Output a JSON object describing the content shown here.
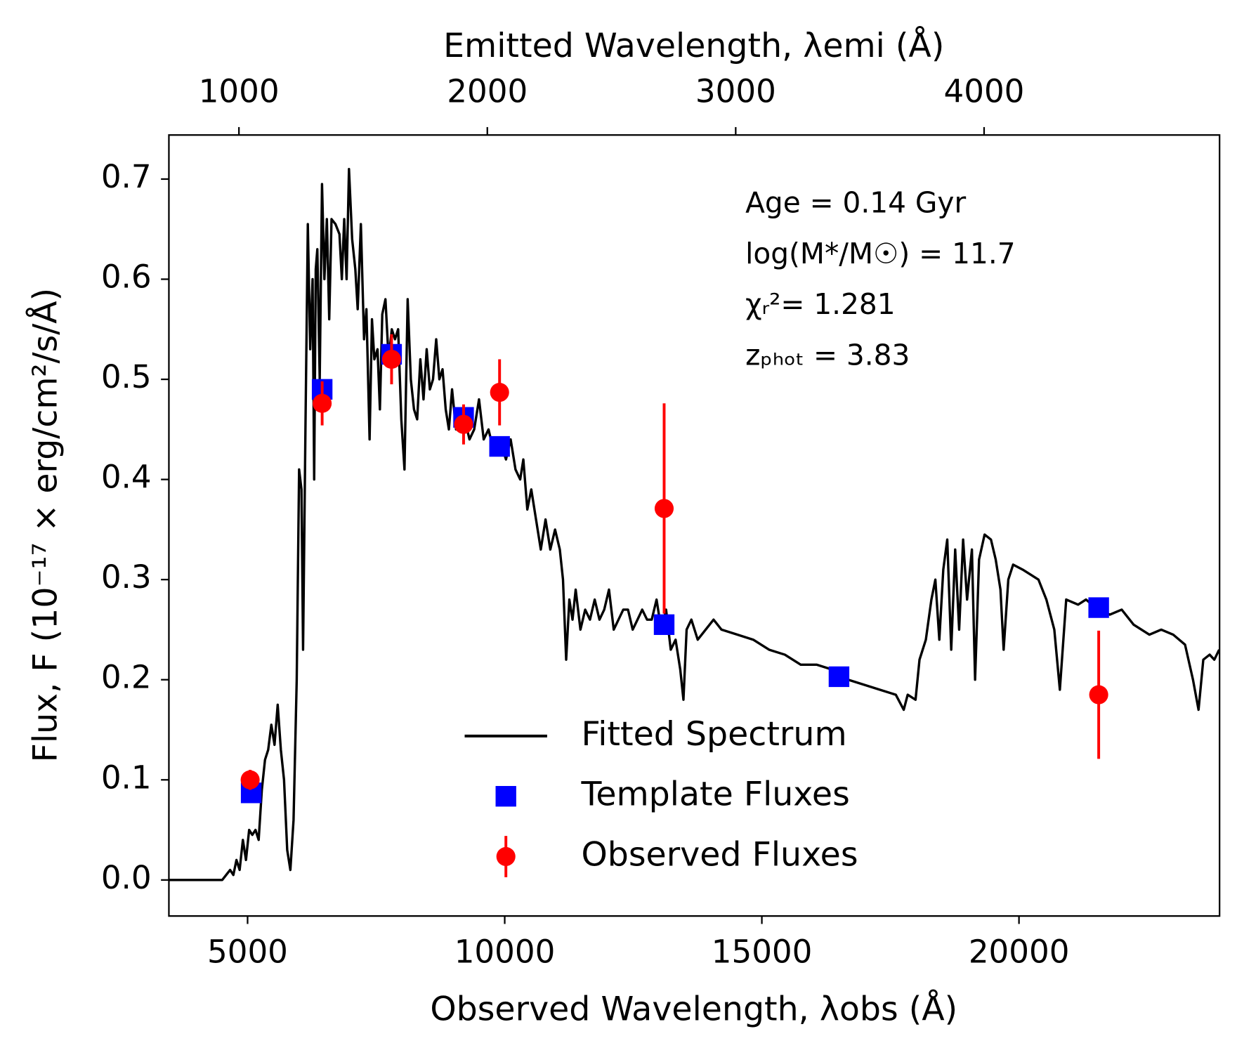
{
  "chart_data": {
    "type": "line",
    "xlabel": "Observed Wavelength, λobs (Å)",
    "ylabel": "Flux, F  (10⁻¹⁷ × erg/cm²/s/Å)",
    "x2label": "Emitted Wavelength, λemi (Å)",
    "xlim": [
      3470,
      23900
    ],
    "ylim": [
      -0.036,
      0.744
    ],
    "x2lim": [
      718,
      4948
    ],
    "xticks": [
      5000,
      10000,
      15000,
      20000
    ],
    "yticks": [
      {
        "value": 0,
        "label": "0.0"
      },
      0.1,
      0.2,
      0.3,
      0.4,
      0.5,
      0.6,
      0.7
    ],
    "x2ticks": [
      1000,
      2000,
      3000,
      4000
    ],
    "annotations": [
      "Age = 0.14 Gyr",
      "log(M*/M☉) = 11.7",
      "χᵣ²= 1.281",
      "zₚₕₒₜ = 3.83"
    ],
    "legend": "lower center",
    "series": [
      {
        "name": "Fitted Spectrum",
        "type": "line",
        "color": "#000000",
        "x": [
          3470,
          4507,
          4584,
          4661,
          4723,
          4784,
          4846,
          4908,
          4969,
          5031,
          5092,
          5154,
          5216,
          5277,
          5339,
          5400,
          5462,
          5524,
          5585,
          5647,
          5709,
          5770,
          5832,
          5894,
          5955,
          6002,
          6048,
          6079,
          6125,
          6171,
          6217,
          6264,
          6294,
          6325,
          6356,
          6402,
          6448,
          6494,
          6541,
          6587,
          6633,
          6710,
          6787,
          6833,
          6879,
          6926,
          6972,
          7034,
          7095,
          7141,
          7203,
          7265,
          7311,
          7373,
          7419,
          7465,
          7527,
          7573,
          7619,
          7681,
          7742,
          7804,
          7866,
          7928,
          7989,
          8051,
          8113,
          8174,
          8236,
          8298,
          8359,
          8421,
          8483,
          8544,
          8606,
          8668,
          8729,
          8791,
          8853,
          8914,
          8976,
          9053,
          9130,
          9223,
          9315,
          9407,
          9500,
          9592,
          9685,
          9777,
          9900,
          10024,
          10116,
          10209,
          10301,
          10363,
          10440,
          10517,
          10609,
          10702,
          10794,
          10887,
          10979,
          11072,
          11133,
          11195,
          11257,
          11318,
          11380,
          11472,
          11565,
          11657,
          11750,
          11842,
          11935,
          12027,
          12120,
          12212,
          12305,
          12397,
          12489,
          12582,
          12674,
          12767,
          12859,
          12952,
          13044,
          13137,
          13229,
          13322,
          13414,
          13476,
          13537,
          13630,
          13753,
          13907,
          14061,
          14215,
          14523,
          14832,
          15140,
          15448,
          15756,
          16064,
          16372,
          16680,
          16988,
          17296,
          17604,
          17758,
          17835,
          17989,
          18066,
          18189,
          18297,
          18374,
          18451,
          18528,
          18605,
          18682,
          18759,
          18836,
          18913,
          18990,
          19085,
          19146,
          19223,
          19331,
          19454,
          19547,
          19639,
          19701,
          19793,
          19886,
          20071,
          20225,
          20379,
          20533,
          20687,
          20795,
          20918,
          21149,
          21303,
          21534,
          21766,
          21997,
          22228,
          22536,
          22767,
          22998,
          23229,
          23383,
          23491,
          23584,
          23707,
          23799,
          23892
        ],
        "values": [
          0,
          0,
          0.005,
          0.01,
          0.005,
          0.02,
          0.01,
          0.04,
          0.02,
          0.05,
          0.045,
          0.05,
          0.04,
          0.09,
          0.12,
          0.13,
          0.155,
          0.135,
          0.175,
          0.13,
          0.1,
          0.03,
          0.01,
          0.06,
          0.2,
          0.41,
          0.39,
          0.23,
          0.45,
          0.655,
          0.53,
          0.6,
          0.4,
          0.61,
          0.63,
          0.5,
          0.695,
          0.6,
          0.66,
          0.56,
          0.66,
          0.655,
          0.645,
          0.6,
          0.66,
          0.6,
          0.71,
          0.64,
          0.61,
          0.57,
          0.655,
          0.54,
          0.57,
          0.44,
          0.56,
          0.52,
          0.53,
          0.47,
          0.565,
          0.58,
          0.52,
          0.55,
          0.54,
          0.55,
          0.46,
          0.41,
          0.58,
          0.5,
          0.47,
          0.46,
          0.52,
          0.48,
          0.53,
          0.49,
          0.5,
          0.54,
          0.5,
          0.51,
          0.47,
          0.45,
          0.49,
          0.45,
          0.47,
          0.46,
          0.44,
          0.45,
          0.48,
          0.44,
          0.45,
          0.43,
          0.44,
          0.42,
          0.44,
          0.41,
          0.4,
          0.42,
          0.37,
          0.39,
          0.36,
          0.33,
          0.36,
          0.33,
          0.35,
          0.33,
          0.3,
          0.22,
          0.28,
          0.26,
          0.29,
          0.25,
          0.27,
          0.26,
          0.28,
          0.26,
          0.27,
          0.29,
          0.25,
          0.26,
          0.27,
          0.27,
          0.25,
          0.26,
          0.27,
          0.26,
          0.26,
          0.28,
          0.25,
          0.27,
          0.23,
          0.24,
          0.21,
          0.18,
          0.25,
          0.26,
          0.24,
          0.25,
          0.26,
          0.25,
          0.245,
          0.24,
          0.23,
          0.225,
          0.215,
          0.215,
          0.21,
          0.2,
          0.195,
          0.19,
          0.185,
          0.17,
          0.185,
          0.18,
          0.22,
          0.24,
          0.28,
          0.3,
          0.24,
          0.31,
          0.34,
          0.23,
          0.33,
          0.25,
          0.34,
          0.28,
          0.33,
          0.2,
          0.32,
          0.345,
          0.34,
          0.32,
          0.29,
          0.23,
          0.3,
          0.315,
          0.31,
          0.305,
          0.3,
          0.28,
          0.25,
          0.19,
          0.28,
          0.275,
          0.28,
          0.27,
          0.265,
          0.27,
          0.255,
          0.245,
          0.25,
          0.245,
          0.235,
          0.2,
          0.17,
          0.22,
          0.225,
          0.22,
          0.23
        ]
      },
      {
        "name": "Template Fluxes",
        "type": "square",
        "color": "#0000ff",
        "x": [
          5070,
          6450,
          7800,
          9200,
          9900,
          13100,
          16500,
          21550
        ],
        "values": [
          0.087,
          0.49,
          0.525,
          0.462,
          0.433,
          0.255,
          0.203,
          0.272
        ]
      },
      {
        "name": "Observed Fluxes",
        "type": "errorbar",
        "color": "#ff0000",
        "x": [
          5050,
          6450,
          7800,
          9200,
          9900,
          13100,
          21550
        ],
        "values": [
          0.1,
          0.476,
          0.52,
          0.455,
          0.487,
          0.371,
          0.185
        ],
        "errors": [
          0.01,
          0.022,
          0.025,
          0.02,
          0.033,
          0.105,
          0.064
        ]
      }
    ]
  }
}
